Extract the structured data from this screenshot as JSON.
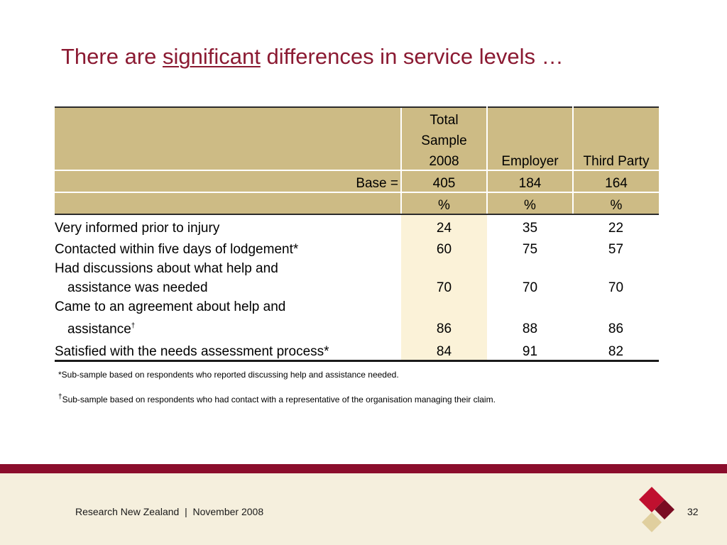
{
  "title": {
    "before": "There are ",
    "emphasis": "significant",
    "after": " differences in service levels …"
  },
  "table": {
    "header": {
      "total_line1": "Total",
      "total_line2": "Sample",
      "total_line3": "2008",
      "employer": "Employer",
      "third_party": "Third Party",
      "base_label": "Base =",
      "base_total": "405",
      "base_employer": "184",
      "base_third_party": "164",
      "pct_total": "%",
      "pct_employer": "%",
      "pct_third_party": "%"
    },
    "rows": [
      {
        "label": "Very informed prior to injury",
        "total": "24",
        "employer": "35",
        "third_party": "22"
      },
      {
        "label": "Contacted within five days of lodgement*",
        "total": "60",
        "employer": "75",
        "third_party": "57"
      },
      {
        "label_line1": "Had discussions about what help and",
        "label_line2": "assistance was needed",
        "total": "70",
        "employer": "70",
        "third_party": "70"
      },
      {
        "label_line1": "Came to an agreement about help and",
        "label_line2": "assistance",
        "label_mark": "†",
        "total": "86",
        "employer": "88",
        "third_party": "86"
      },
      {
        "label": "Satisfied with the needs assessment process*",
        "total": "84",
        "employer": "91",
        "third_party": "82"
      }
    ]
  },
  "notes": {
    "note1": "*Sub-sample based on respondents who reported discussing help and assistance needed.",
    "note2_mark": "†",
    "note2": "Sub-sample based on respondents who had contact with a representative of the organisation managing their claim."
  },
  "footer": {
    "text": "Research New Zealand  |  November 2008",
    "page": "32"
  },
  "colors": {
    "title": "#8b1a32",
    "header_fill": "#cdbb85",
    "total_column_fill": "#fbf2d8",
    "footer_bar": "#8b0d2c",
    "footer_bg": "#f5efdd",
    "logo_red": "#c0102f",
    "logo_dark": "#7a0c22",
    "logo_tan": "#e0cf9e"
  }
}
